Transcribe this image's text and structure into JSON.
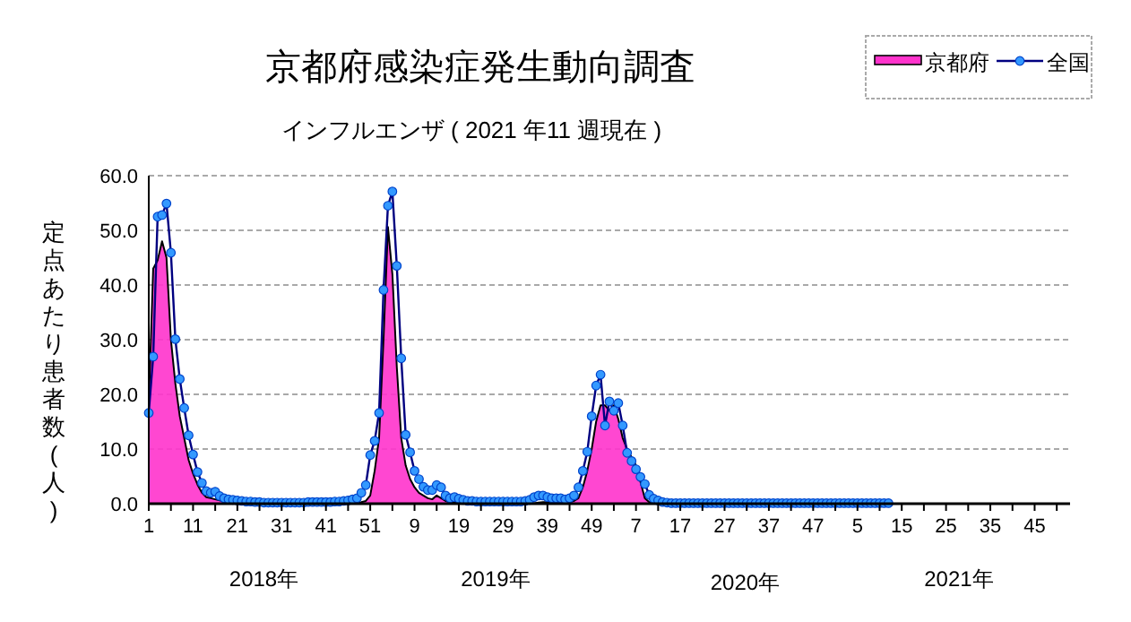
{
  "chart_data": {
    "type": "area",
    "title": "京都府感染症発生動向調査",
    "subtitle": "インフルエンザ ( 2021 年11 週現在 )",
    "ylabel": "定点あたり患者数(人)",
    "annotations": [
      "2018年",
      "2019年",
      "2020年",
      "2021年"
    ],
    "categories": [
      "1",
      null,
      null,
      null,
      null,
      null,
      null,
      null,
      null,
      null,
      "11",
      null,
      null,
      null,
      null,
      null,
      null,
      null,
      null,
      null,
      "21",
      null,
      null,
      null,
      null,
      null,
      null,
      null,
      null,
      null,
      "31",
      null,
      null,
      null,
      null,
      null,
      null,
      null,
      null,
      null,
      "41",
      null,
      null,
      null,
      null,
      null,
      null,
      null,
      null,
      null,
      "51",
      null,
      null,
      null,
      null,
      null,
      null,
      null,
      null,
      null,
      "9",
      null,
      null,
      null,
      null,
      null,
      null,
      null,
      null,
      null,
      "19",
      null,
      null,
      null,
      null,
      null,
      null,
      null,
      null,
      null,
      "29",
      null,
      null,
      null,
      null,
      null,
      null,
      null,
      null,
      null,
      "39",
      null,
      null,
      null,
      null,
      null,
      null,
      null,
      null,
      null,
      "49",
      null,
      null,
      null,
      null,
      null,
      null,
      null,
      null,
      null,
      "7",
      null,
      null,
      null,
      null,
      null,
      null,
      null,
      null,
      null,
      "17",
      null,
      null,
      null,
      null,
      null,
      null,
      null,
      null,
      null,
      "27",
      null,
      null,
      null,
      null,
      null,
      null,
      null,
      null,
      null,
      "37",
      null,
      null,
      null,
      null,
      null,
      null,
      null,
      null,
      null,
      "47",
      null,
      null,
      null,
      null,
      null,
      null,
      null,
      null,
      null,
      "5",
      null,
      null,
      null,
      null,
      null,
      null,
      null,
      null,
      null,
      "15",
      null,
      null,
      null,
      null,
      null,
      null,
      null,
      null,
      null,
      "25",
      null,
      null,
      null,
      null,
      null,
      null,
      null,
      null,
      null,
      "35",
      null,
      null,
      null,
      null,
      null,
      null,
      null,
      null,
      null,
      "45",
      null,
      null,
      null,
      null,
      null,
      null,
      null,
      null
    ],
    "ylim": [
      0,
      60
    ],
    "yticks": [
      {
        "value": 0,
        "label": "0.0"
      },
      {
        "value": 10,
        "label": "10.0"
      },
      {
        "value": 20,
        "label": "20.0"
      },
      {
        "value": 30,
        "label": "30.0"
      },
      {
        "value": 40,
        "label": "40.0"
      },
      {
        "value": 50,
        "label": "50.0"
      },
      {
        "value": 60,
        "label": "60.0"
      }
    ],
    "grid": "y",
    "legend": "top right",
    "series": [
      {
        "name": "京都府",
        "color": "#ff33cc",
        "values": [
          18.0,
          43.0,
          44.5,
          48.0,
          45.0,
          30.0,
          22.0,
          16.0,
          12.0,
          8.0,
          5.5,
          3.5,
          2.0,
          1.2,
          1.0,
          0.8,
          0.6,
          0.4,
          0.3,
          0.3,
          0.2,
          0.2,
          0.1,
          0.1,
          0.1,
          0.1,
          0.1,
          0.1,
          0.1,
          0.1,
          0.1,
          0.1,
          0.1,
          0.1,
          0.1,
          0.1,
          0.1,
          0.1,
          0.1,
          0.1,
          0.1,
          0.1,
          0.1,
          0.1,
          0.1,
          0.1,
          0.1,
          0.2,
          0.3,
          0.5,
          1.5,
          6.0,
          12.0,
          30.0,
          50.6,
          42.0,
          25.0,
          12.0,
          7.0,
          4.5,
          3.0,
          2.0,
          1.5,
          1.0,
          0.8,
          1.5,
          1.0,
          0.5,
          0.3,
          0.2,
          0.2,
          0.1,
          0.1,
          0.1,
          0.1,
          0.1,
          0.1,
          0.1,
          0.1,
          0.1,
          0.1,
          0.1,
          0.1,
          0.1,
          0.1,
          0.1,
          0.1,
          0.1,
          0.2,
          0.3,
          0.3,
          0.2,
          0.2,
          0.2,
          0.2,
          0.3,
          0.5,
          1.0,
          3.0,
          6.0,
          10.0,
          15.0,
          18.0,
          18.0,
          17.0,
          18.0,
          15.5,
          12.0,
          10.0,
          8.5,
          7.0,
          4.0,
          1.0,
          0.3,
          0.1,
          0.1,
          0.0,
          0.0,
          0.0,
          0.0,
          0.0,
          0.0,
          0.0,
          0.0,
          0.0,
          0.0,
          0.0,
          0.0,
          0.0,
          0.0,
          0.0,
          0.0,
          0.0,
          0.0,
          0.0,
          0.0,
          0.0,
          0.0,
          0.0,
          0.0,
          0.0,
          0.0,
          0.0,
          0.0,
          0.0,
          0.0,
          0.0,
          0.0,
          0.0,
          0.0,
          0.0,
          0.0,
          0.0,
          0.0,
          0.0,
          0.0,
          0.0,
          0.0,
          0.0,
          0.0,
          0.0,
          0.0,
          0.0,
          0.0,
          0.0,
          0.0,
          0.0,
          0.0,
          null,
          null,
          null,
          null,
          null,
          null,
          null,
          null,
          null,
          null,
          null,
          null,
          null,
          null,
          null,
          null,
          null,
          null,
          null,
          null,
          null,
          null,
          null,
          null,
          null,
          null,
          null,
          null,
          null,
          null,
          null,
          null,
          null,
          null,
          null,
          null,
          null,
          null,
          null,
          null,
          null
        ]
      },
      {
        "name": "全国",
        "type": "line",
        "color": "#000080",
        "marker": "circle",
        "values": [
          16.6,
          26.9,
          52.5,
          52.8,
          54.9,
          45.9,
          30.1,
          22.8,
          17.5,
          12.5,
          9.0,
          5.8,
          3.8,
          2.3,
          2.0,
          2.2,
          1.4,
          1.0,
          0.8,
          0.7,
          0.6,
          0.5,
          0.4,
          0.4,
          0.3,
          0.3,
          0.2,
          0.2,
          0.2,
          0.2,
          0.2,
          0.2,
          0.2,
          0.2,
          0.2,
          0.2,
          0.3,
          0.3,
          0.3,
          0.3,
          0.3,
          0.3,
          0.4,
          0.4,
          0.5,
          0.6,
          0.8,
          1.0,
          2.0,
          3.4,
          8.9,
          11.5,
          16.6,
          39.1,
          54.5,
          57.1,
          43.5,
          26.6,
          12.6,
          9.4,
          6.0,
          4.5,
          3.1,
          2.5,
          2.5,
          3.4,
          3.0,
          1.5,
          1.0,
          1.2,
          0.9,
          0.7,
          0.5,
          0.5,
          0.4,
          0.4,
          0.4,
          0.4,
          0.4,
          0.4,
          0.4,
          0.4,
          0.4,
          0.4,
          0.4,
          0.5,
          0.7,
          1.2,
          1.5,
          1.5,
          1.2,
          1.0,
          1.0,
          1.0,
          0.8,
          1.0,
          1.5,
          3.0,
          6.0,
          9.5,
          16.0,
          21.6,
          23.6,
          14.3,
          18.7,
          17.0,
          18.4,
          14.3,
          9.3,
          7.8,
          6.3,
          4.9,
          3.6,
          1.6,
          0.9,
          0.6,
          0.3,
          0.2,
          0.1,
          0.1,
          0.1,
          0.1,
          0.1,
          0.1,
          0.1,
          0.1,
          0.1,
          0.1,
          0.1,
          0.1,
          0.1,
          0.1,
          0.1,
          0.1,
          0.1,
          0.1,
          0.1,
          0.1,
          0.1,
          0.1,
          0.1,
          0.1,
          0.1,
          0.1,
          0.1,
          0.1,
          0.1,
          0.1,
          0.1,
          0.1,
          0.1,
          0.1,
          0.1,
          0.1,
          0.1,
          0.1,
          0.1,
          0.1,
          0.1,
          0.1,
          0.1,
          0.1,
          0.1,
          0.1,
          0.1,
          0.1,
          0.1,
          0.1,
          null,
          null,
          null,
          null,
          null,
          null,
          null,
          null,
          null,
          null,
          null,
          null,
          null,
          null,
          null,
          null,
          null,
          null,
          null,
          null,
          null,
          null,
          null,
          null,
          null,
          null,
          null,
          null,
          null,
          null,
          null,
          null,
          null,
          null,
          null,
          null,
          null,
          null,
          null,
          null,
          null
        ]
      }
    ]
  }
}
